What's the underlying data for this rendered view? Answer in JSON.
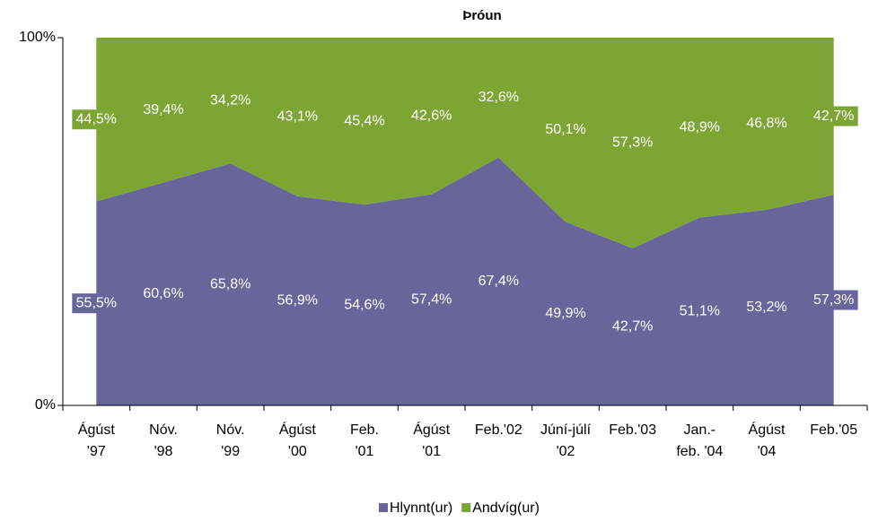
{
  "chart_data": {
    "type": "stacked_area",
    "title": "Þróun",
    "categories": [
      "Ágúst\n'97",
      "Nóv.\n'98",
      "Nóv.\n'99",
      "Ágúst\n'00",
      "Feb.\n'01",
      "Ágúst\n'01",
      "Feb.'02",
      "Júní-júlí\n'02",
      "Feb.'03",
      "Jan.-\nfeb. '04",
      "Ágúst\n'04",
      "Feb.'05"
    ],
    "series": [
      {
        "name": "Hlynnt(ur)",
        "color": "#67659a",
        "values": [
          55.5,
          60.6,
          65.8,
          56.9,
          54.6,
          57.4,
          67.4,
          49.9,
          42.7,
          51.1,
          53.2,
          57.3
        ],
        "value_labels": [
          "55,5%",
          "60,6%",
          "65,8%",
          "56,9%",
          "54,6%",
          "57,4%",
          "67,4%",
          "49,9%",
          "42,7%",
          "51,1%",
          "53,2%",
          "57,3%"
        ]
      },
      {
        "name": "Andvíg(ur)",
        "color": "#7da534",
        "values": [
          44.5,
          39.4,
          34.2,
          43.1,
          45.4,
          42.6,
          32.6,
          50.1,
          57.3,
          48.9,
          46.8,
          42.7
        ],
        "value_labels": [
          "44,5%",
          "39,4%",
          "34,2%",
          "43,1%",
          "45,4%",
          "42,6%",
          "32,6%",
          "50,1%",
          "57,3%",
          "48,9%",
          "46,8%",
          "42,7%"
        ]
      }
    ],
    "ylim": [
      0,
      100
    ],
    "yticks": [
      {
        "value": 0,
        "label": "0%"
      },
      {
        "value": 100,
        "label": "100%"
      }
    ],
    "legend": "bottom"
  }
}
